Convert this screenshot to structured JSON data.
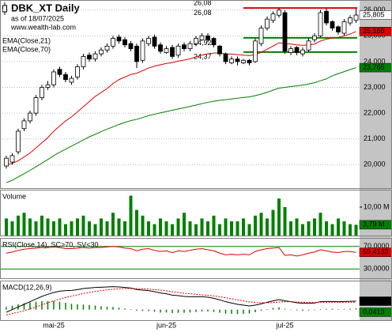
{
  "chart_data": [
    {
      "type": "candlestick",
      "title": "DBK_XT Daily",
      "subtitle": "as of 18/07/2025",
      "source": "www.wealth-lab.com",
      "categories": [
        null,
        null,
        null,
        null,
        null,
        null,
        null,
        null,
        "mai-25",
        null,
        null,
        null,
        null,
        null,
        null,
        null,
        null,
        null,
        null,
        null,
        null,
        null,
        null,
        null,
        null,
        null,
        null,
        "jun-25",
        null,
        null,
        null,
        null,
        null,
        null,
        null,
        null,
        null,
        null,
        null,
        null,
        null,
        null,
        null,
        null,
        null,
        null,
        null,
        "jul-25",
        null,
        null,
        null,
        null,
        null,
        null,
        null,
        null,
        null,
        null,
        null,
        null
      ],
      "open": [
        19.95,
        20.1,
        20.5,
        21.4,
        21.7,
        22.0,
        22.6,
        23.0,
        23.1,
        23.7,
        23.5,
        23.2,
        23.4,
        23.8,
        24.25,
        24.1,
        24.3,
        24.45,
        24.6,
        24.95,
        24.85,
        24.7,
        24.6,
        24.05,
        24.7,
        24.95,
        24.65,
        24.35,
        24.55,
        24.25,
        24.65,
        24.5,
        24.7,
        24.85,
        25.0,
        24.9,
        24.6,
        24.3,
        23.95,
        24.1,
        23.95,
        24.05,
        24.0,
        24.7,
        25.3,
        25.6,
        25.8,
        25.9,
        24.35,
        24.55,
        24.3,
        24.45,
        24.85,
        25.0,
        25.95,
        25.55,
        25.35,
        25.1,
        25.5,
        25.6
      ],
      "high": [
        20.35,
        20.45,
        21.4,
        21.8,
        22.1,
        22.7,
        23.1,
        23.25,
        23.7,
        23.8,
        23.6,
        23.45,
        23.9,
        24.3,
        24.35,
        24.4,
        24.55,
        24.7,
        25.0,
        25.05,
        24.95,
        24.8,
        24.7,
        24.9,
        25.0,
        25.05,
        24.75,
        24.6,
        24.65,
        24.7,
        24.75,
        24.8,
        25.0,
        25.1,
        25.1,
        24.95,
        24.65,
        24.35,
        24.2,
        24.2,
        24.1,
        24.1,
        24.9,
        25.4,
        25.75,
        25.95,
        26.08,
        26.0,
        24.6,
        24.6,
        24.55,
        24.9,
        25.1,
        26.0,
        26.05,
        25.6,
        25.4,
        25.65,
        25.8,
        26.05
      ],
      "low": [
        19.85,
        20.0,
        20.4,
        21.3,
        21.6,
        21.9,
        22.5,
        22.9,
        23.0,
        23.4,
        23.2,
        23.1,
        23.3,
        23.7,
        24.0,
        24.0,
        24.2,
        24.35,
        24.5,
        24.7,
        24.55,
        24.4,
        23.75,
        23.95,
        24.6,
        24.5,
        24.3,
        24.3,
        24.1,
        24.15,
        24.4,
        24.4,
        24.6,
        24.8,
        24.75,
        24.55,
        24.2,
        23.9,
        23.9,
        23.85,
        23.9,
        23.85,
        23.95,
        24.6,
        25.2,
        25.5,
        25.7,
        24.3,
        24.25,
        24.25,
        24.2,
        24.37,
        24.75,
        24.95,
        25.4,
        25.2,
        25.05,
        25.0,
        25.4,
        25.5
      ],
      "close": [
        20.25,
        20.35,
        21.3,
        21.7,
        22.0,
        22.6,
        23.0,
        23.1,
        23.6,
        23.5,
        23.3,
        23.35,
        23.8,
        24.2,
        24.1,
        24.3,
        24.45,
        24.6,
        24.9,
        24.8,
        24.65,
        24.5,
        24.0,
        24.8,
        24.9,
        24.6,
        24.4,
        24.5,
        24.2,
        24.6,
        24.5,
        24.7,
        24.9,
        25.0,
        24.85,
        24.65,
        24.3,
        24.0,
        24.1,
        24.0,
        24.05,
        23.95,
        24.8,
        25.3,
        25.65,
        25.85,
        26.0,
        24.4,
        24.5,
        24.35,
        24.45,
        24.8,
        25.0,
        25.9,
        25.5,
        25.3,
        25.15,
        25.55,
        25.7,
        25.805
      ],
      "close_label": "25,805",
      "up_color": "#ffffff",
      "down_color": "#000000",
      "ylim": [
        19.09,
        26.39
      ],
      "yticks": [
        {
          "value": 20,
          "label": "20,000"
        },
        {
          "value": 21,
          "label": "21,000"
        },
        {
          "value": 22,
          "label": "22,000"
        },
        {
          "value": 23,
          "label": "23,000"
        },
        {
          "value": 24,
          "label": "24,000"
        },
        {
          "value": 25,
          "label": "25,000"
        },
        {
          "value": 26,
          "label": "26,000"
        }
      ],
      "grid": true,
      "series": [
        {
          "name": "EMA(Close,21)",
          "color": "#e00000",
          "last_label": "25,168",
          "values": [
            20.0,
            20.05,
            20.15,
            20.3,
            20.45,
            20.65,
            20.85,
            21.05,
            21.3,
            21.5,
            21.7,
            21.85,
            22.05,
            22.25,
            22.45,
            22.65,
            22.8,
            22.95,
            23.15,
            23.3,
            23.4,
            23.5,
            23.55,
            23.65,
            23.75,
            23.82,
            23.88,
            23.93,
            23.96,
            24.02,
            24.06,
            24.11,
            24.18,
            24.25,
            24.3,
            24.33,
            24.33,
            24.3,
            24.29,
            24.27,
            24.25,
            24.23,
            24.27,
            24.36,
            24.48,
            24.6,
            24.73,
            24.7,
            24.68,
            24.65,
            24.63,
            24.65,
            24.68,
            24.8,
            24.87,
            24.91,
            24.94,
            25.0,
            25.07,
            25.168
          ]
        },
        {
          "name": "EMA(Close,70)",
          "color": "#008000",
          "last_label": "23,765",
          "values": [
            19.3,
            19.4,
            19.52,
            19.65,
            19.78,
            19.92,
            20.06,
            20.2,
            20.35,
            20.48,
            20.6,
            20.72,
            20.84,
            20.96,
            21.08,
            21.18,
            21.28,
            21.38,
            21.47,
            21.56,
            21.64,
            21.71,
            21.76,
            21.83,
            21.9,
            21.96,
            22.01,
            22.06,
            22.11,
            22.16,
            22.21,
            22.26,
            22.31,
            22.37,
            22.42,
            22.46,
            22.5,
            22.52,
            22.55,
            22.58,
            22.61,
            22.63,
            22.68,
            22.74,
            22.81,
            22.89,
            22.97,
            23.0,
            23.03,
            23.06,
            23.09,
            23.13,
            23.18,
            23.26,
            23.33,
            23.45,
            23.53,
            23.61,
            23.69,
            23.765
          ]
        }
      ],
      "levels": [
        {
          "value": 26.08,
          "label": "26,08",
          "color": "#e00000"
        },
        {
          "value": 24.92,
          "label": "24,92",
          "color": "#008000"
        },
        {
          "value": 24.37,
          "label": "24,37",
          "color": "#008000"
        }
      ],
      "annotations": [
        {
          "label": "26,08"
        }
      ]
    },
    {
      "type": "bar",
      "title": "Volume",
      "color": "#008000",
      "last_label": "3,79 M",
      "values": [
        6,
        5,
        7,
        8,
        6,
        5,
        7,
        6,
        5,
        6,
        4,
        5,
        6,
        7,
        5,
        4,
        6,
        5,
        8,
        6,
        5,
        14,
        9,
        7,
        5,
        4,
        6,
        5,
        4,
        6,
        8,
        5,
        4,
        6,
        5,
        7,
        4,
        6,
        5,
        5,
        6,
        4,
        7,
        8,
        6,
        9,
        13,
        10,
        5,
        6,
        4,
        5,
        6,
        8,
        5,
        4,
        6,
        5,
        4,
        3.79
      ],
      "ylim": [
        0,
        16.1
      ],
      "yticks": [
        {
          "value": 10,
          "label": "10,00 M"
        }
      ]
    },
    {
      "type": "line",
      "title": "RSI(Close,14), SC>70, SV<30",
      "grid_color": "#008000",
      "ylim": [
        13.5,
        85
      ],
      "yticks": [
        {
          "value": 70,
          "label": "70,0000"
        },
        {
          "value": 30,
          "label": "30,0000"
        }
      ],
      "series": [
        {
          "color": "#e00000",
          "last_label": "59,4133",
          "values": [
            58,
            60,
            63,
            65,
            66,
            67,
            68,
            68,
            69,
            68,
            66,
            66,
            67,
            68,
            67,
            68,
            68,
            69,
            70,
            69,
            67,
            66,
            62,
            65,
            66,
            63,
            61,
            62,
            59,
            62,
            61,
            63,
            65,
            66,
            64,
            62,
            58,
            55,
            56,
            55,
            56,
            55,
            61,
            64,
            66,
            67,
            68,
            54,
            55,
            53,
            55,
            58,
            60,
            64,
            62,
            60,
            59,
            61,
            61,
            59.4133
          ]
        }
      ]
    },
    {
      "type": "line",
      "title": "MACD(12,26,9)",
      "ylim": [
        -0.4,
        1.1
      ],
      "series": [
        {
          "color": "#000000",
          "last_label": "0,3200",
          "values": [
            -0.1,
            0.0,
            0.1,
            0.2,
            0.3,
            0.4,
            0.5,
            0.58,
            0.65,
            0.7,
            0.72,
            0.73,
            0.76,
            0.8,
            0.82,
            0.84,
            0.85,
            0.86,
            0.87,
            0.86,
            0.84,
            0.82,
            0.76,
            0.74,
            0.72,
            0.68,
            0.63,
            0.6,
            0.55,
            0.53,
            0.5,
            0.49,
            0.49,
            0.49,
            0.47,
            0.43,
            0.37,
            0.3,
            0.25,
            0.2,
            0.17,
            0.14,
            0.17,
            0.22,
            0.28,
            0.33,
            0.38,
            0.33,
            0.3,
            0.26,
            0.24,
            0.24,
            0.25,
            0.3,
            0.31,
            0.31,
            0.3,
            0.31,
            0.315,
            0.32
          ]
        },
        {
          "color": "#e00000",
          "dashed": true,
          "values": [
            -0.2,
            -0.15,
            -0.1,
            -0.04,
            0.03,
            0.1,
            0.18,
            0.26,
            0.33,
            0.4,
            0.46,
            0.51,
            0.56,
            0.61,
            0.65,
            0.69,
            0.72,
            0.75,
            0.77,
            0.79,
            0.8,
            0.8,
            0.8,
            0.79,
            0.78,
            0.76,
            0.74,
            0.71,
            0.68,
            0.65,
            0.62,
            0.6,
            0.58,
            0.56,
            0.54,
            0.52,
            0.49,
            0.45,
            0.41,
            0.37,
            0.33,
            0.29,
            0.27,
            0.26,
            0.26,
            0.27,
            0.29,
            0.3,
            0.3,
            0.29,
            0.28,
            0.27,
            0.27,
            0.28,
            0.28,
            0.28,
            0.28,
            0.28,
            0.28,
            0.2787
          ]
        }
      ],
      "histogram": {
        "color": "#008000",
        "last_label": "0,0413",
        "values": [
          0.1,
          0.15,
          0.2,
          0.24,
          0.27,
          0.3,
          0.32,
          0.32,
          0.32,
          0.3,
          0.26,
          0.22,
          0.2,
          0.19,
          0.17,
          0.15,
          0.13,
          0.11,
          0.1,
          0.07,
          0.04,
          0.02,
          -0.04,
          -0.05,
          -0.06,
          -0.08,
          -0.11,
          -0.11,
          -0.13,
          -0.12,
          -0.12,
          -0.11,
          -0.09,
          -0.07,
          -0.07,
          -0.09,
          -0.12,
          -0.15,
          -0.16,
          -0.17,
          -0.16,
          -0.15,
          -0.1,
          -0.04,
          0.02,
          0.06,
          0.09,
          0.03,
          0,
          -0.03,
          -0.04,
          -0.03,
          -0.02,
          0.02,
          0.03,
          0.03,
          0.02,
          0.03,
          0.035,
          0.0413
        ]
      }
    }
  ]
}
